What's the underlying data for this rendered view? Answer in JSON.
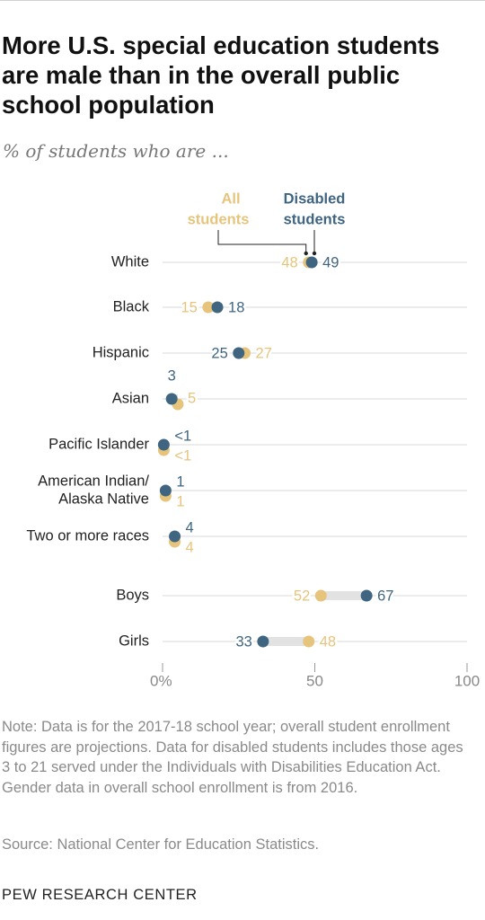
{
  "title": "More U.S. special education students are male than in the overall public school population",
  "subtitle": "% of students who are ...",
  "note": "Note: Data is for the 2017-18 school year; overall student enrollment figures are projections. Data for disabled students includes those ages 3 to 21 served under the Individuals with Disabilities Education Act. Gender data in overall school enrollment is from 2016.",
  "source": "Source: National Center for Education Statistics.",
  "org": "PEW RESEARCH CENTER",
  "colors": {
    "all": "#e6c47c",
    "disabled": "#3f6581",
    "grid": "#d9d9d9",
    "range": "#e2e2e2"
  },
  "chart_data": {
    "type": "dot",
    "xlim": [
      0,
      100
    ],
    "xticks": [
      {
        "value": 0,
        "label": "0%"
      },
      {
        "value": 50,
        "label": "50"
      },
      {
        "value": 100,
        "label": "100"
      }
    ],
    "legend": {
      "all_line1": "All",
      "all_line2": "students",
      "disabled_line1": "Disabled",
      "disabled_line2": "students"
    },
    "categories": [
      {
        "name": "White",
        "all": 48,
        "all_label": "48",
        "disabled": 49,
        "disabled_label": "49"
      },
      {
        "name": "Black",
        "all": 15,
        "all_label": "15",
        "disabled": 18,
        "disabled_label": "18"
      },
      {
        "name": "Hispanic",
        "all": 27,
        "all_label": "27",
        "disabled": 25,
        "disabled_label": "25"
      },
      {
        "name": "Asian",
        "all": 5,
        "all_label": "5",
        "disabled": 3,
        "disabled_label": "3"
      },
      {
        "name": "Pacific Islander",
        "all": 0.4,
        "all_label": "<1",
        "disabled": 0.4,
        "disabled_label": "<1"
      },
      {
        "name": "American Indian/",
        "name2": "Alaska Native",
        "all": 1,
        "all_label": "1",
        "disabled": 1,
        "disabled_label": "1"
      },
      {
        "name": "Two or more races",
        "all": 4,
        "all_label": "4",
        "disabled": 4,
        "disabled_label": "4"
      },
      {
        "name": "Boys",
        "all": 52,
        "all_label": "52",
        "disabled": 67,
        "disabled_label": "67"
      },
      {
        "name": "Girls",
        "all": 48,
        "all_label": "48",
        "disabled": 33,
        "disabled_label": "33"
      }
    ]
  }
}
